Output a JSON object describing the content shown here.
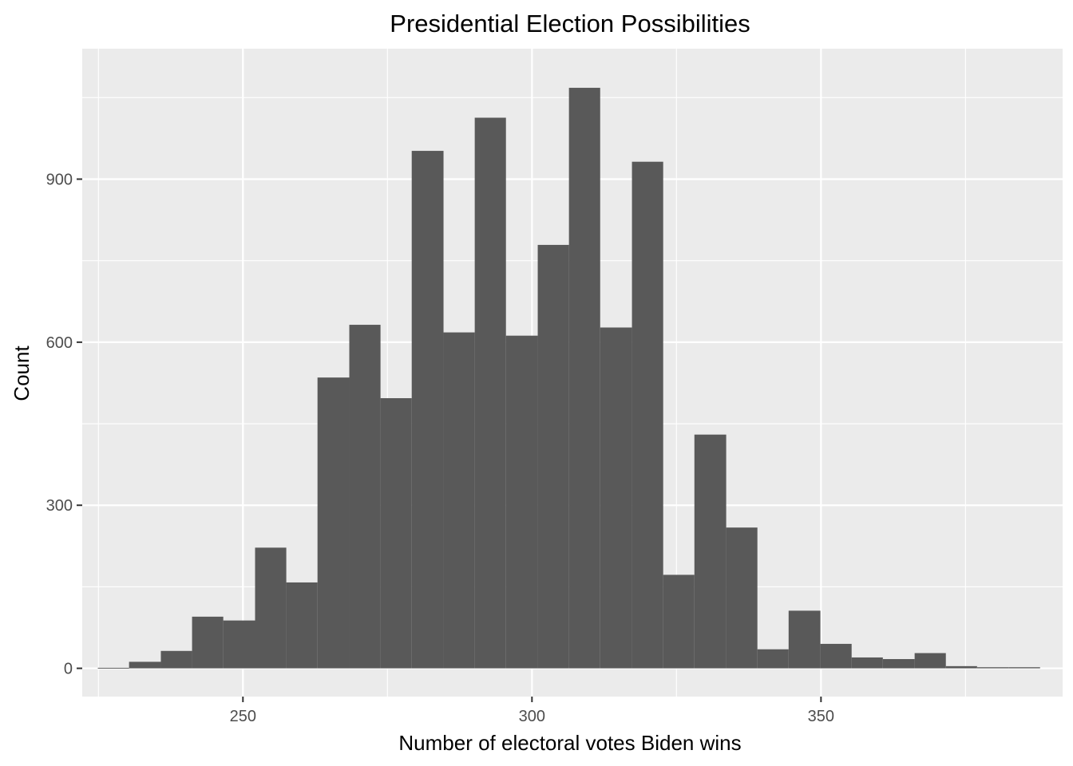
{
  "chart_data": {
    "type": "bar",
    "title": "Presidential Election Possibilities",
    "xlabel": "Number of electoral votes Biden wins",
    "ylabel": "Count",
    "xlim": [
      222.2,
      391.8
    ],
    "ylim": [
      -52,
      1140
    ],
    "x_ticks": [
      250,
      300,
      350
    ],
    "y_ticks": [
      0,
      300,
      600,
      900
    ],
    "bin_width": 5.43,
    "bins": [
      {
        "x0": 224.9,
        "x1": 230.3,
        "count": 1
      },
      {
        "x0": 230.3,
        "x1": 235.8,
        "count": 12
      },
      {
        "x0": 235.8,
        "x1": 241.2,
        "count": 32
      },
      {
        "x0": 241.2,
        "x1": 246.6,
        "count": 95
      },
      {
        "x0": 246.6,
        "x1": 252.1,
        "count": 88
      },
      {
        "x0": 252.1,
        "x1": 257.5,
        "count": 222
      },
      {
        "x0": 257.5,
        "x1": 262.9,
        "count": 158
      },
      {
        "x0": 262.9,
        "x1": 268.4,
        "count": 535
      },
      {
        "x0": 268.4,
        "x1": 273.8,
        "count": 632
      },
      {
        "x0": 273.8,
        "x1": 279.2,
        "count": 497
      },
      {
        "x0": 279.2,
        "x1": 284.7,
        "count": 952
      },
      {
        "x0": 284.7,
        "x1": 290.1,
        "count": 618
      },
      {
        "x0": 290.1,
        "x1": 295.5,
        "count": 1013
      },
      {
        "x0": 295.5,
        "x1": 301.0,
        "count": 612
      },
      {
        "x0": 301.0,
        "x1": 306.4,
        "count": 779
      },
      {
        "x0": 306.4,
        "x1": 311.8,
        "count": 1068
      },
      {
        "x0": 311.8,
        "x1": 317.3,
        "count": 627
      },
      {
        "x0": 317.3,
        "x1": 322.7,
        "count": 932
      },
      {
        "x0": 322.7,
        "x1": 328.1,
        "count": 172
      },
      {
        "x0": 328.1,
        "x1": 333.6,
        "count": 430
      },
      {
        "x0": 333.6,
        "x1": 339.0,
        "count": 259
      },
      {
        "x0": 339.0,
        "x1": 344.4,
        "count": 35
      },
      {
        "x0": 344.4,
        "x1": 349.9,
        "count": 106
      },
      {
        "x0": 349.9,
        "x1": 355.3,
        "count": 45
      },
      {
        "x0": 355.3,
        "x1": 360.7,
        "count": 20
      },
      {
        "x0": 360.7,
        "x1": 366.2,
        "count": 17
      },
      {
        "x0": 366.2,
        "x1": 371.6,
        "count": 28
      },
      {
        "x0": 371.6,
        "x1": 377.0,
        "count": 4
      },
      {
        "x0": 377.0,
        "x1": 382.5,
        "count": 2
      },
      {
        "x0": 382.5,
        "x1": 387.9,
        "count": 2
      }
    ],
    "grid": true,
    "panel_background": "#ebebeb",
    "grid_color": "#ffffff",
    "bar_color": "#595959",
    "tick_label_color": "#4d4d4d",
    "tick_color": "#333333"
  }
}
